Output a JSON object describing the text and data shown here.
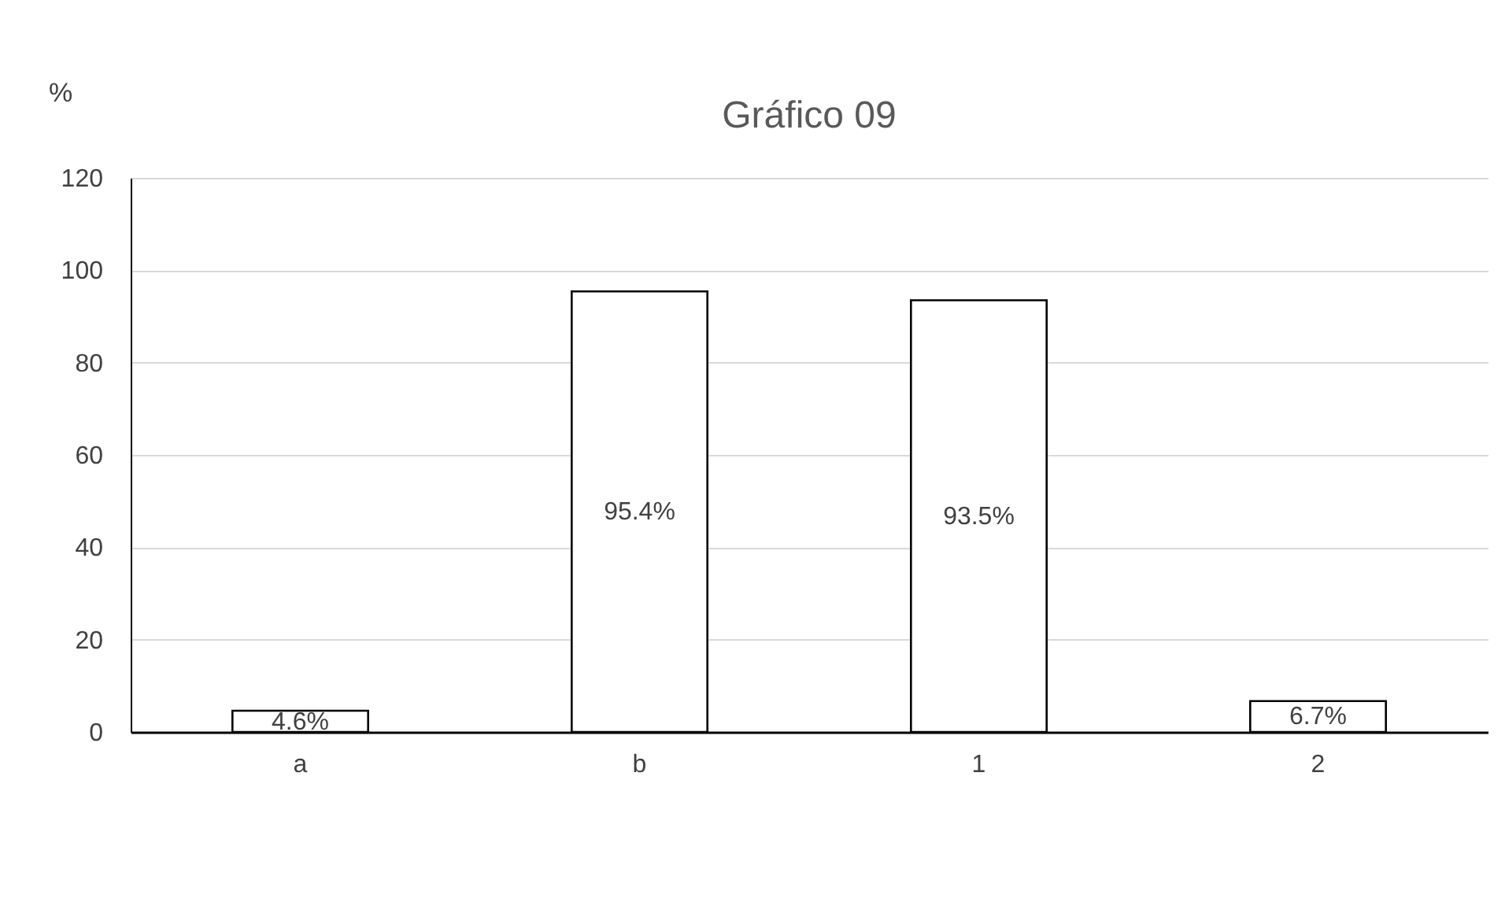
{
  "chart_data": {
    "type": "bar",
    "title": "Gráfico 09",
    "ylabel": "%",
    "categories": [
      "a",
      "b",
      "1",
      "2"
    ],
    "values": [
      4.6,
      95.4,
      93.5,
      6.7
    ],
    "value_labels": [
      "4.6%",
      "95.4%",
      "93.5%",
      "6.7%"
    ],
    "color": "#ffffff",
    "ylim": [
      0,
      120
    ],
    "yticks": [
      0,
      20,
      40,
      60,
      80,
      100,
      120
    ],
    "grid": "y"
  }
}
